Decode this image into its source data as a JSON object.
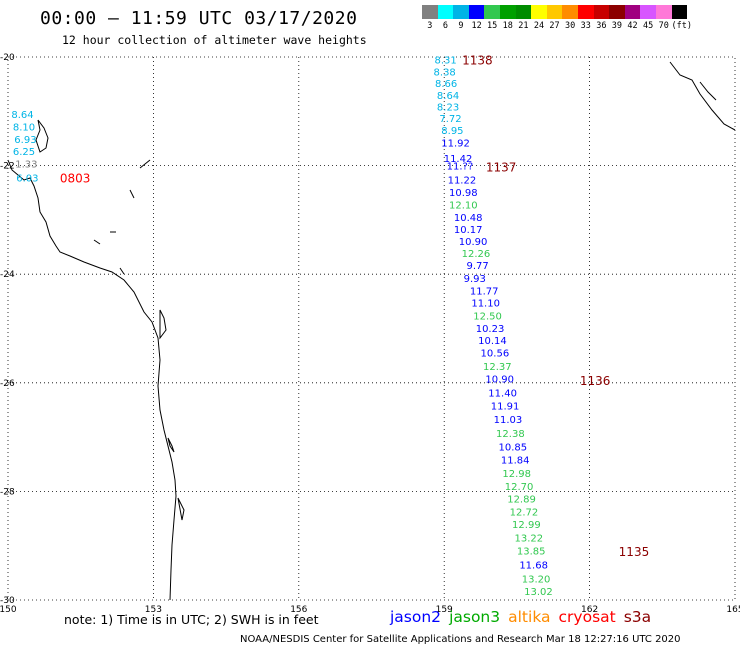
{
  "header": {
    "title": "00:00 – 11:59 UTC 03/17/2020",
    "subtitle": "12 hour collection of altimeter wave heights"
  },
  "colorbar": {
    "colors": [
      "#808080",
      "#00ffff",
      "#00b4e6",
      "#0000ff",
      "#32c850",
      "#00a000",
      "#008c00",
      "#ffff00",
      "#ffc800",
      "#ff8c00",
      "#ff0000",
      "#c80000",
      "#8c0000",
      "#a00080",
      "#d855ff",
      "#ff78d8",
      "#000000"
    ],
    "labels": [
      "3",
      "6",
      "9",
      "12",
      "15",
      "18",
      "21",
      "24",
      "27",
      "30",
      "33",
      "36",
      "39",
      "42",
      "45",
      "70",
      "(ft)"
    ]
  },
  "axes": {
    "lon_ticks": [
      "150",
      "153",
      "156",
      "159",
      "162",
      "165"
    ],
    "lat_ticks": [
      "-20",
      "-22",
      "-24",
      "-26",
      "-28",
      "-30"
    ]
  },
  "chart_data": {
    "type": "map",
    "lon_range": [
      150,
      165
    ],
    "lat_range": [
      -30,
      -20
    ],
    "grid": true,
    "satellite_colors": {
      "jason2": "#0000ff",
      "jason3": "#00aa00",
      "altika": "#ff8c00",
      "cryosat": "#ff0000",
      "s3a": "#8b0000"
    },
    "time_labels": [
      {
        "text": "1138",
        "lon": 159.37,
        "lat": -20.05,
        "sat": "s3a"
      },
      {
        "text": "1137",
        "lon": 159.86,
        "lat": -22.02,
        "sat": "s3a"
      },
      {
        "text": "1136",
        "lon": 161.8,
        "lat": -25.95,
        "sat": "s3a"
      },
      {
        "text": "1135",
        "lon": 162.6,
        "lat": -29.1,
        "sat": "s3a"
      },
      {
        "text": "0803",
        "lon": 151.07,
        "lat": -22.22,
        "sat": "cryosat"
      }
    ],
    "observations": [
      {
        "value": "8.31",
        "lon": 158.8,
        "lat": -20.05,
        "c": "#00b4e6"
      },
      {
        "value": "8.38",
        "lon": 158.78,
        "lat": -20.27,
        "c": "#00b4e6"
      },
      {
        "value": "8.66",
        "lon": 158.81,
        "lat": -20.48,
        "c": "#00b4e6"
      },
      {
        "value": "8.64",
        "lon": 158.85,
        "lat": -20.7,
        "c": "#00b4e6"
      },
      {
        "value": "8.23",
        "lon": 158.85,
        "lat": -20.91,
        "c": "#00b4e6"
      },
      {
        "value": "7.72",
        "lon": 158.9,
        "lat": -21.12,
        "c": "#00b4e6"
      },
      {
        "value": "8.95",
        "lon": 158.94,
        "lat": -21.34,
        "c": "#00b4e6"
      },
      {
        "value": "11.92",
        "lon": 158.94,
        "lat": -21.57,
        "c": "#0000ff"
      },
      {
        "value": "11.42",
        "lon": 158.99,
        "lat": -21.86,
        "c": "#0000ff"
      },
      {
        "value": "11.??",
        "lon": 159.05,
        "lat": -22.0,
        "c": "#0000ff"
      },
      {
        "value": "11.22",
        "lon": 159.07,
        "lat": -22.26,
        "c": "#0000ff"
      },
      {
        "value": "10.98",
        "lon": 159.1,
        "lat": -22.49,
        "c": "#0000ff"
      },
      {
        "value": "12.10",
        "lon": 159.1,
        "lat": -22.72,
        "c": "#32c850"
      },
      {
        "value": "10.48",
        "lon": 159.2,
        "lat": -22.95,
        "c": "#0000ff"
      },
      {
        "value": "10.17",
        "lon": 159.2,
        "lat": -23.17,
        "c": "#0000ff"
      },
      {
        "value": "10.90",
        "lon": 159.3,
        "lat": -23.39,
        "c": "#0000ff"
      },
      {
        "value": "12.26",
        "lon": 159.36,
        "lat": -23.61,
        "c": "#32c850"
      },
      {
        "value": "9.77",
        "lon": 159.46,
        "lat": -23.83,
        "c": "#0000ff"
      },
      {
        "value": "9.93",
        "lon": 159.4,
        "lat": -24.07,
        "c": "#0000ff"
      },
      {
        "value": "11.77",
        "lon": 159.53,
        "lat": -24.3,
        "c": "#0000ff"
      },
      {
        "value": "11.10",
        "lon": 159.56,
        "lat": -24.52,
        "c": "#0000ff"
      },
      {
        "value": "12.50",
        "lon": 159.6,
        "lat": -24.76,
        "c": "#32c850"
      },
      {
        "value": "10.23",
        "lon": 159.65,
        "lat": -24.99,
        "c": "#0000ff"
      },
      {
        "value": "10.14",
        "lon": 159.7,
        "lat": -25.21,
        "c": "#0000ff"
      },
      {
        "value": "10.56",
        "lon": 159.75,
        "lat": -25.44,
        "c": "#0000ff"
      },
      {
        "value": "12.37",
        "lon": 159.8,
        "lat": -25.69,
        "c": "#32c850"
      },
      {
        "value": "10.90",
        "lon": 159.85,
        "lat": -25.92,
        "c": "#0000ff"
      },
      {
        "value": "11.40",
        "lon": 159.91,
        "lat": -26.18,
        "c": "#0000ff"
      },
      {
        "value": "11.91",
        "lon": 159.96,
        "lat": -26.42,
        "c": "#0000ff"
      },
      {
        "value": "11.03",
        "lon": 160.02,
        "lat": -26.67,
        "c": "#0000ff"
      },
      {
        "value": "12.38",
        "lon": 160.07,
        "lat": -26.92,
        "c": "#32c850"
      },
      {
        "value": "10.85",
        "lon": 160.12,
        "lat": -27.17,
        "c": "#0000ff"
      },
      {
        "value": "11.84",
        "lon": 160.17,
        "lat": -27.41,
        "c": "#0000ff"
      },
      {
        "value": "12.98",
        "lon": 160.2,
        "lat": -27.66,
        "c": "#32c850"
      },
      {
        "value": "12.70",
        "lon": 160.25,
        "lat": -27.9,
        "c": "#32c850"
      },
      {
        "value": "12.89",
        "lon": 160.3,
        "lat": -28.13,
        "c": "#32c850"
      },
      {
        "value": "12.72",
        "lon": 160.35,
        "lat": -28.37,
        "c": "#32c850"
      },
      {
        "value": "12.99",
        "lon": 160.4,
        "lat": -28.6,
        "c": "#32c850"
      },
      {
        "value": "13.22",
        "lon": 160.45,
        "lat": -28.85,
        "c": "#32c850"
      },
      {
        "value": "13.85",
        "lon": 160.5,
        "lat": -29.09,
        "c": "#32c850"
      },
      {
        "value": "11.68",
        "lon": 160.55,
        "lat": -29.35,
        "c": "#0000ff"
      },
      {
        "value": "13.20",
        "lon": 160.6,
        "lat": -29.6,
        "c": "#32c850"
      },
      {
        "value": "13.02",
        "lon": 160.65,
        "lat": -29.83,
        "c": "#32c850"
      },
      {
        "value": "8.64",
        "lon": 150.07,
        "lat": -21.05,
        "c": "#00b4e6"
      },
      {
        "value": "8.10",
        "lon": 150.1,
        "lat": -21.28,
        "c": "#00b4e6"
      },
      {
        "value": "6.93",
        "lon": 150.13,
        "lat": -21.51,
        "c": "#00b4e6"
      },
      {
        "value": "6.25",
        "lon": 150.1,
        "lat": -21.73,
        "c": "#00b4e6"
      },
      {
        "value": "1.33",
        "lon": 150.15,
        "lat": -21.96,
        "c": "#808080"
      },
      {
        "value": "6.03",
        "lon": 150.17,
        "lat": -22.22,
        "c": "#00b4e6"
      }
    ]
  },
  "footer": {
    "note": "note: 1) Time is in UTC; 2) SWH is in feet",
    "legend": [
      {
        "label": "jason2",
        "color": "#0000ff"
      },
      {
        "label": "jason3",
        "color": "#00aa00"
      },
      {
        "label": "altika",
        "color": "#ff8c00"
      },
      {
        "label": "cryosat",
        "color": "#ff0000"
      },
      {
        "label": "s3a",
        "color": "#8b0000"
      }
    ],
    "credit": "NOAA/NESDIS Center for Satellite Applications and Research   Mar 18 12:27:16 UTC 2020"
  }
}
